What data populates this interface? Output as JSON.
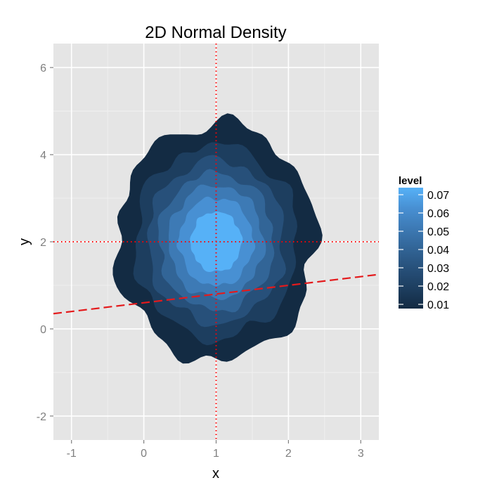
{
  "chart_data": {
    "type": "contour",
    "title": "2D Normal Density",
    "xlabel": "x",
    "ylabel": "y",
    "xlim": [
      -1.25,
      3.25
    ],
    "ylim": [
      -2.55,
      6.55
    ],
    "x_ticks": [
      -1,
      0,
      1,
      2,
      3
    ],
    "y_ticks": [
      -2,
      0,
      2,
      4,
      6
    ],
    "grid": true,
    "center": {
      "x": 1,
      "y": 2
    },
    "levels": [
      0.01,
      0.02,
      0.03,
      0.04,
      0.05,
      0.06,
      0.07
    ],
    "level_colors": [
      "#132b43",
      "#1d3e5f",
      "#27507a",
      "#326597",
      "#3d7ab5",
      "#4890d3",
      "#56b1f7"
    ],
    "legend": {
      "title": "level",
      "position": "right",
      "labels": [
        "0.07",
        "0.06",
        "0.05",
        "0.04",
        "0.03",
        "0.02",
        "0.01"
      ]
    },
    "reference_lines": [
      {
        "kind": "vertical",
        "x": 1,
        "color": "#ff0000",
        "style": "dotted"
      },
      {
        "kind": "horizontal",
        "y": 2,
        "color": "#ff0000",
        "style": "dotted"
      },
      {
        "kind": "abline",
        "intercept": 0.6,
        "slope": 0.2,
        "color": "#e41a1c",
        "style": "dashed"
      }
    ]
  }
}
